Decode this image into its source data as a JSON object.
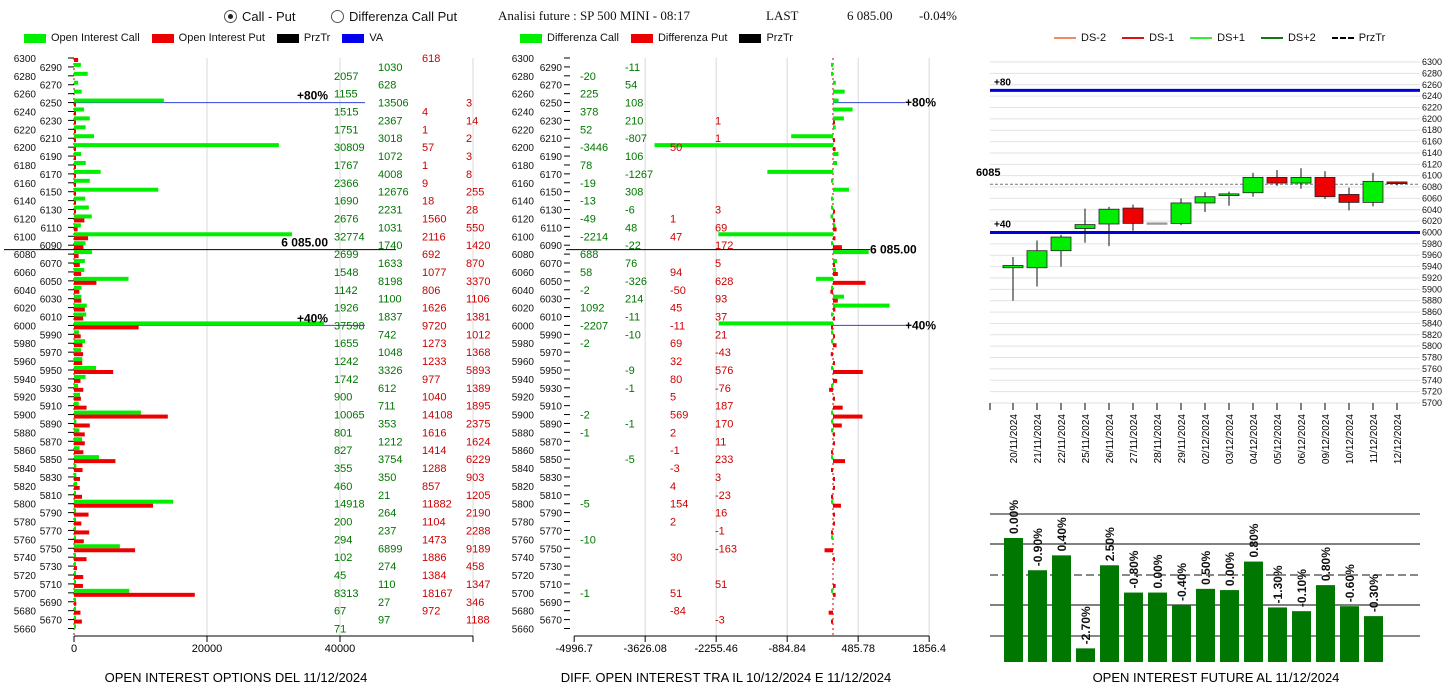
{
  "header": {
    "radio_options": [
      {
        "label": "Call - Put",
        "selected": true
      },
      {
        "label": "Differenza Call Put",
        "selected": false
      }
    ],
    "title": "Analisi future : SP 500 MINI - 08:17",
    "last_label": "LAST",
    "last_value": "6 085.00",
    "change": "-0.04%"
  },
  "left_legend": [
    {
      "label": "Open Interest Call",
      "color": "#00ee00"
    },
    {
      "label": "Open Interest Put",
      "color": "#ee0000"
    },
    {
      "label": "PrzTr",
      "color": "#000000"
    },
    {
      "label": "VA",
      "color": "#0000ee"
    }
  ],
  "middle_legend": [
    {
      "label": "Differenza Call",
      "color": "#00ee00"
    },
    {
      "label": "Differenza Put",
      "color": "#ee0000"
    },
    {
      "label": "PrzTr",
      "color": "#000000"
    }
  ],
  "right_legend": [
    {
      "label": "DS-2",
      "color": "#f08a60",
      "style": "solid"
    },
    {
      "label": "DS-1",
      "color": "#dd1111",
      "style": "solid"
    },
    {
      "label": "DS+1",
      "color": "#33ee33",
      "style": "solid"
    },
    {
      "label": "DS+2",
      "color": "#117711",
      "style": "solid"
    },
    {
      "label": "PrzTr",
      "color": "#000000",
      "style": "dashed"
    }
  ],
  "chart_data": [
    {
      "type": "bar",
      "orientation": "horizontal",
      "title": "OPEN INTEREST OPTIONS DEL 11/12/2024",
      "x_ticks": [
        "0",
        "20000",
        "40000"
      ],
      "xlim": [
        0,
        60000
      ],
      "strikes": [
        6300,
        6290,
        6280,
        6270,
        6260,
        6250,
        6240,
        6230,
        6220,
        6210,
        6200,
        6190,
        6180,
        6170,
        6160,
        6150,
        6140,
        6130,
        6120,
        6110,
        6100,
        6090,
        6080,
        6070,
        6060,
        6050,
        6040,
        6030,
        6020,
        6010,
        6000,
        5990,
        5980,
        5970,
        5960,
        5950,
        5940,
        5930,
        5920,
        5910,
        5900,
        5890,
        5880,
        5870,
        5860,
        5850,
        5840,
        5830,
        5820,
        5810,
        5800,
        5790,
        5780,
        5770,
        5760,
        5750,
        5740,
        5730,
        5720,
        5710,
        5700,
        5690,
        5680,
        5670,
        5660
      ],
      "series": [
        {
          "name": "Open Interest Call",
          "values": [
            0,
            1030,
            2057,
            628,
            1155,
            13506,
            1515,
            2367,
            1751,
            3018,
            30809,
            1072,
            1767,
            4008,
            2366,
            12676,
            1690,
            2231,
            2676,
            1031,
            32774,
            1740,
            2699,
            1633,
            1548,
            8198,
            1142,
            1100,
            1926,
            1837,
            37598,
            742,
            1655,
            1048,
            1242,
            3326,
            1742,
            612,
            900,
            711,
            10065,
            353,
            801,
            1212,
            827,
            3754,
            355,
            350,
            460,
            21,
            14918,
            264,
            200,
            237,
            294,
            6899,
            102,
            274,
            45,
            110,
            8313,
            27,
            67,
            97,
            71
          ]
        },
        {
          "name": "Open Interest Put",
          "values": [
            618,
            0,
            0,
            0,
            0,
            3,
            4,
            14,
            1,
            2,
            57,
            3,
            1,
            8,
            9,
            255,
            18,
            28,
            1560,
            550,
            2116,
            1420,
            692,
            870,
            1077,
            3370,
            806,
            1106,
            1626,
            1381,
            9720,
            1012,
            1273,
            1368,
            1233,
            5893,
            977,
            1389,
            1040,
            1895,
            14108,
            2375,
            1616,
            1624,
            1414,
            6229,
            1288,
            903,
            857,
            1205,
            11882,
            2190,
            1104,
            2288,
            1473,
            9189,
            1886,
            458,
            1384,
            1347,
            18167,
            346,
            972,
            1188,
            0
          ]
        }
      ],
      "przTr": {
        "strike": 6085,
        "label": "6 085.00"
      },
      "va_lines": [
        {
          "strike": 6250,
          "label": "+80%"
        },
        {
          "strike": 6000,
          "label": "+40%"
        }
      ]
    },
    {
      "type": "bar",
      "orientation": "horizontal",
      "title": "DIFF. OPEN INTEREST TRA IL 10/12/2024 E 11/12/2024",
      "x_ticks": [
        "-4996.7",
        "-3626.08",
        "-2255.46",
        "-884.84",
        "485.78",
        "1856.4"
      ],
      "xlim": [
        -4996.7,
        1856.4
      ],
      "strikes": [
        6300,
        6290,
        6280,
        6270,
        6260,
        6250,
        6240,
        6230,
        6220,
        6210,
        6200,
        6190,
        6180,
        6170,
        6160,
        6150,
        6140,
        6130,
        6120,
        6110,
        6100,
        6090,
        6080,
        6070,
        6060,
        6050,
        6040,
        6030,
        6020,
        6010,
        6000,
        5990,
        5980,
        5970,
        5960,
        5950,
        5940,
        5930,
        5920,
        5910,
        5900,
        5890,
        5880,
        5870,
        5860,
        5850,
        5840,
        5830,
        5820,
        5810,
        5800,
        5790,
        5780,
        5770,
        5760,
        5750,
        5740,
        5730,
        5720,
        5710,
        5700,
        5690,
        5680,
        5670,
        5660
      ],
      "series": [
        {
          "name": "Differenza Call",
          "values": [
            null,
            -11,
            -20,
            54,
            225,
            108,
            378,
            210,
            52,
            -807,
            -3446,
            106,
            78,
            -1267,
            -19,
            308,
            -13,
            -6,
            -49,
            48,
            -2214,
            -22,
            688,
            76,
            58,
            -326,
            -2,
            214,
            1092,
            -11,
            -2207,
            -10,
            -2,
            null,
            null,
            -9,
            null,
            -1,
            null,
            null,
            -2,
            -1,
            -1,
            null,
            null,
            -5,
            null,
            null,
            null,
            null,
            -5,
            null,
            null,
            null,
            -10,
            null,
            null,
            null,
            null,
            null,
            -1,
            null,
            null,
            null,
            null
          ]
        },
        {
          "name": "Differenza Put",
          "values": [
            null,
            null,
            null,
            null,
            null,
            null,
            null,
            1,
            null,
            1,
            50,
            null,
            null,
            null,
            null,
            null,
            null,
            3,
            1,
            69,
            47,
            172,
            null,
            5,
            94,
            628,
            -50,
            93,
            45,
            37,
            -11,
            21,
            69,
            -43,
            32,
            576,
            80,
            -76,
            5,
            187,
            569,
            170,
            2,
            11,
            -1,
            233,
            -3,
            3,
            4,
            -23,
            154,
            16,
            2,
            -1,
            null,
            -163,
            30,
            null,
            null,
            51,
            51,
            null,
            -84,
            -3,
            null
          ]
        }
      ],
      "przTr": {
        "strike": 6085,
        "label": "6 085.00"
      },
      "va_lines": [
        {
          "strike": 6250,
          "label": "+80%"
        },
        {
          "strike": 6000,
          "label": "+40%"
        }
      ]
    },
    {
      "type": "candlestick",
      "ylim": [
        5700,
        6300
      ],
      "y_tick_step": 20,
      "dates": [
        "20/11/2024",
        "21/11/2024",
        "22/11/2024",
        "25/11/2024",
        "26/11/2024",
        "27/11/2024",
        "28/11/2024",
        "29/11/2024",
        "02/12/2024",
        "03/12/2024",
        "04/12/2024",
        "05/12/2024",
        "06/12/2024",
        "09/12/2024",
        "10/12/2024",
        "11/12/2024",
        "12/12/2024"
      ],
      "open": [
        5938,
        5938,
        5968,
        6007,
        6015,
        6043,
        6017,
        6016,
        6052,
        6065,
        6070,
        6097,
        6087,
        6097,
        6067,
        6053,
        6089
      ],
      "high": [
        5957,
        5986,
        5996,
        6042,
        6045,
        6049,
        6017,
        6060,
        6071,
        6072,
        6105,
        6110,
        6113,
        6108,
        6079,
        6105,
        6090
      ],
      "low": [
        5880,
        5905,
        5940,
        5982,
        5976,
        6003,
        6017,
        6013,
        6036,
        6047,
        6063,
        6082,
        6077,
        6059,
        6039,
        6046,
        6083
      ],
      "close": [
        5942,
        5968,
        5992,
        6014,
        6041,
        6016,
        6017,
        6052,
        6063,
        6068,
        6097,
        6087,
        6097,
        6063,
        6053,
        6090,
        6086
      ],
      "przTr": {
        "value": 6085,
        "label": "6085"
      },
      "va_lines": [
        {
          "value": 6250,
          "label": "+80"
        },
        {
          "value": 6000,
          "label": "+40"
        }
      ]
    },
    {
      "type": "bar",
      "title": "OPEN INTEREST FUTURE AL 11/12/2024",
      "relative_levels": [
        1.0,
        0.74,
        0.86,
        0.11,
        0.78,
        0.56,
        0.56,
        0.46,
        0.59,
        0.58,
        0.81,
        0.44,
        0.41,
        0.62,
        0.45,
        0.37
      ],
      "data_labels": [
        "0.00%",
        "-0.90%",
        "0.40%",
        "-2.70%",
        "2.50%",
        "-0.80%",
        "0.00%",
        "-0.40%",
        "0.50%",
        "0.00%",
        "0.80%",
        "-1.30%",
        "-0.10%",
        "0.80%",
        "-0.60%",
        "-0.30%"
      ],
      "color": "#007700"
    }
  ]
}
